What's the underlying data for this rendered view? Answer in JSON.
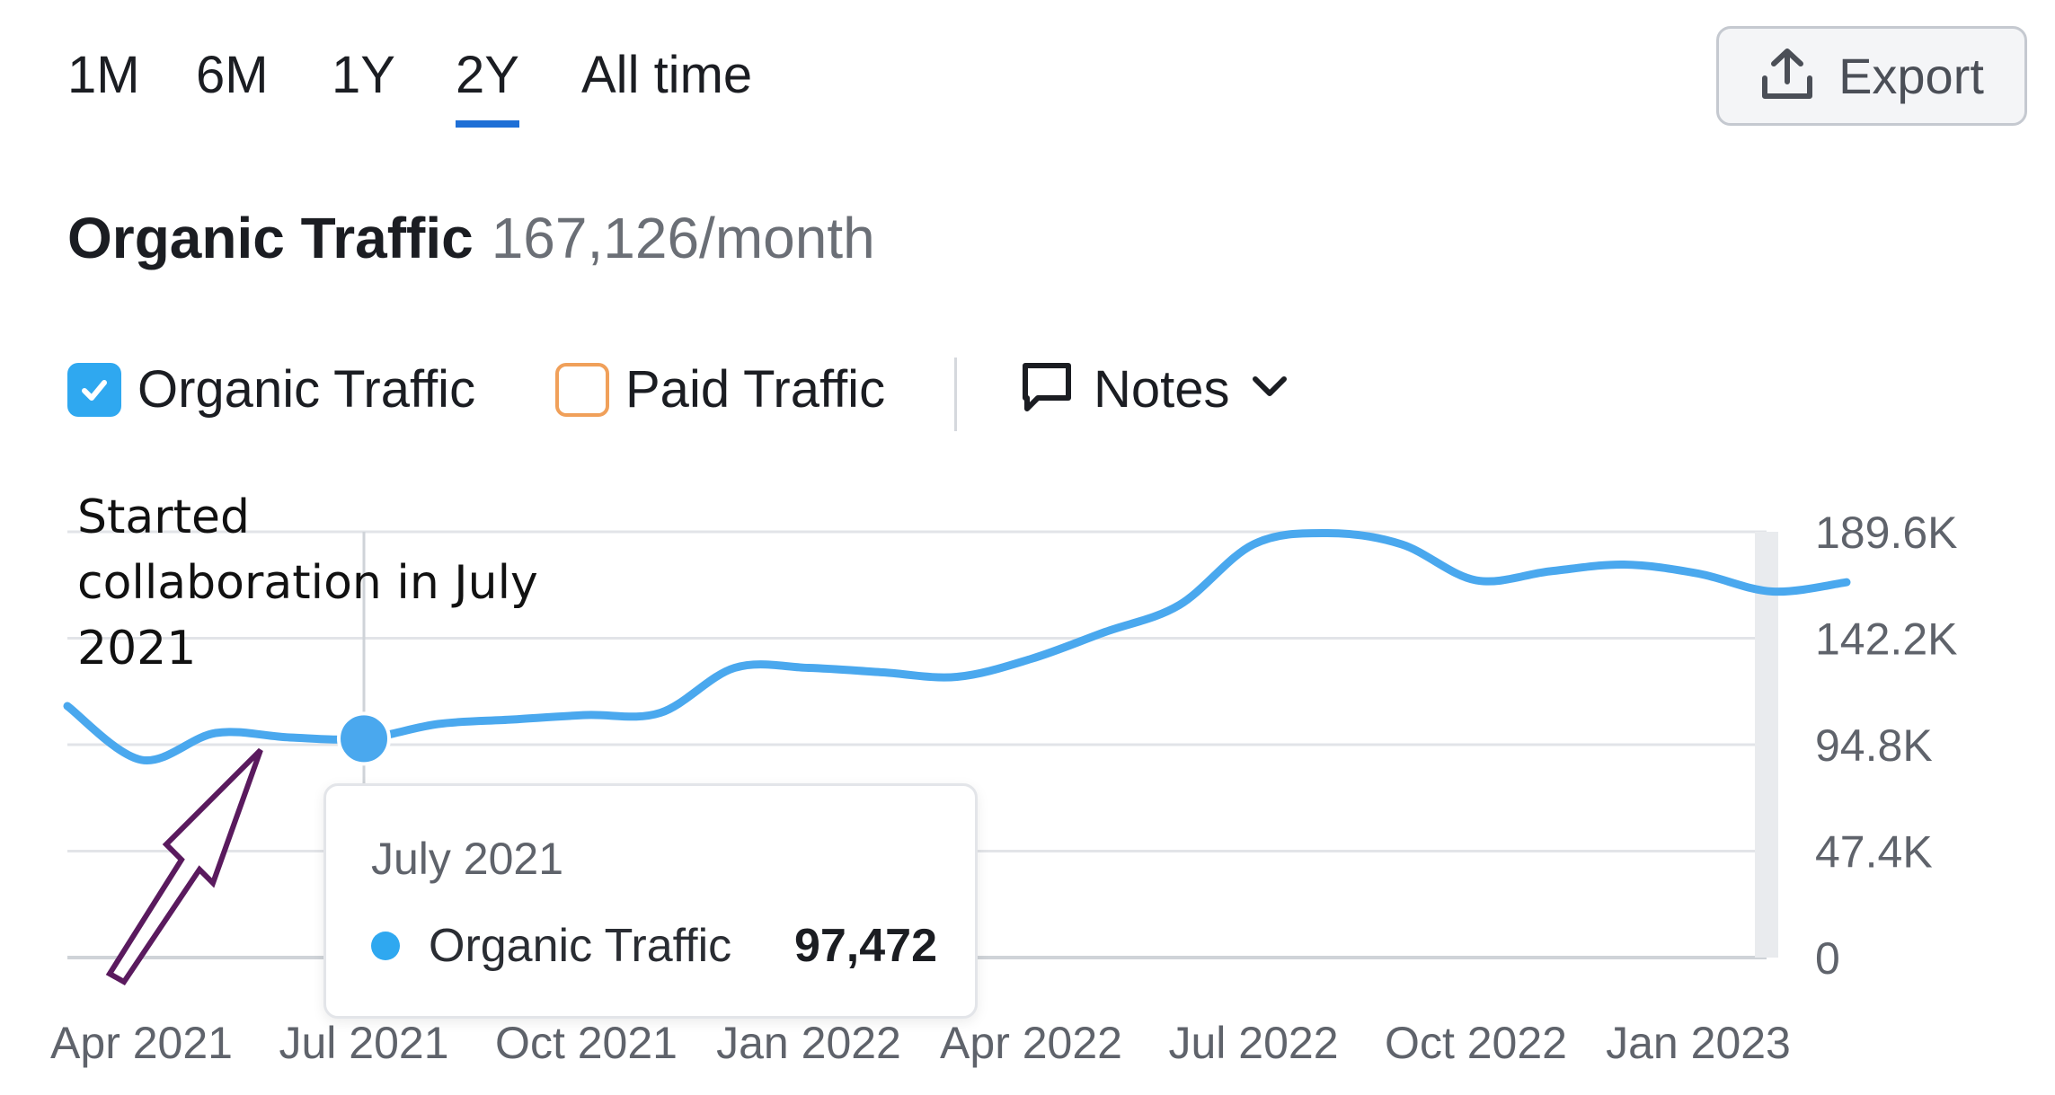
{
  "tabs": [
    {
      "label": "1M",
      "active": false
    },
    {
      "label": "6M",
      "active": false
    },
    {
      "label": "1Y",
      "active": false
    },
    {
      "label": "2Y",
      "active": true
    },
    {
      "label": "All time",
      "active": false
    }
  ],
  "export": {
    "label": "Export",
    "icon": "upload-icon"
  },
  "header": {
    "title": "Organic Traffic",
    "value": "167,126/month"
  },
  "legend": {
    "organic": {
      "label": "Organic Traffic",
      "checked": true,
      "color": "#2fa8f0"
    },
    "paid": {
      "label": "Paid Traffic",
      "checked": false,
      "color": "#f0a05a"
    }
  },
  "notes": {
    "label": "Notes",
    "icon": "speech-bubble-icon"
  },
  "annotation": {
    "line1": "Started",
    "line2": "collaboration in July",
    "line3": "2021"
  },
  "tooltip": {
    "date": "July 2021",
    "series": "Organic Traffic",
    "value": "97,472"
  },
  "chart_data": {
    "type": "line",
    "title": "",
    "xlabel": "",
    "ylabel": "",
    "x_tick_labels": [
      "Apr 2021",
      "Jul 2021",
      "Oct 2021",
      "Jan 2022",
      "Apr 2022",
      "Jul 2022",
      "Oct 2022",
      "Jan 2023"
    ],
    "y_tick_labels": [
      "189.6K",
      "142.2K",
      "94.8K",
      "47.4K",
      "0"
    ],
    "ylim": [
      0,
      189600
    ],
    "axis_position": "right",
    "grid": true,
    "highlight": {
      "x": "Jul 2021",
      "y": 97472
    },
    "series": [
      {
        "color": "#4aa8ee",
        "points": [
          [
            "Mar 2021",
            112000
          ],
          [
            "Apr 2021",
            88000
          ],
          [
            "May 2021",
            100000
          ],
          [
            "Jun 2021",
            98000
          ],
          [
            "Jul 2021",
            97472
          ],
          [
            "Aug 2021",
            104000
          ],
          [
            "Sep 2021",
            106000
          ],
          [
            "Oct 2021",
            108000
          ],
          [
            "Nov 2021",
            109000
          ],
          [
            "Dec 2021",
            129000
          ],
          [
            "Jan 2022",
            129000
          ],
          [
            "Feb 2022",
            127000
          ],
          [
            "Mar 2022",
            125000
          ],
          [
            "Apr 2022",
            133000
          ],
          [
            "May 2022",
            145000
          ],
          [
            "Jun 2022",
            157000
          ],
          [
            "Jul 2022",
            184000
          ],
          [
            "Aug 2022",
            189000
          ],
          [
            "Sep 2022",
            184000
          ],
          [
            "Oct 2022",
            168000
          ],
          [
            "Nov 2022",
            172000
          ],
          [
            "Dec 2022",
            175000
          ],
          [
            "Jan 2023",
            171000
          ],
          [
            "Feb 2023",
            163000
          ],
          [
            "Mar 2023",
            167126
          ]
        ]
      }
    ]
  }
}
